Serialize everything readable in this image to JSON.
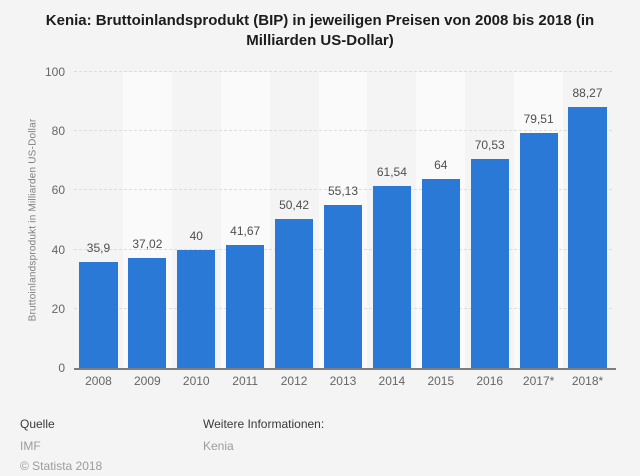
{
  "title": "Kenia: Bruttoinlandsprodukt (BIP) in jeweiligen Preisen von 2008 bis 2018 (in Milliarden US-Dollar)",
  "chart_data": {
    "type": "bar",
    "title": "Kenia: Bruttoinlandsprodukt (BIP) in jeweiligen Preisen von 2008 bis 2018 (in Milliarden US-Dollar)",
    "xlabel": "",
    "ylabel": "Bruttoinlandsprodukt in Milliarden US-Dollar",
    "categories": [
      "2008",
      "2009",
      "2010",
      "2011",
      "2012",
      "2013",
      "2014",
      "2015",
      "2016",
      "2017*",
      "2018*"
    ],
    "values": [
      35.9,
      37.02,
      40,
      41.67,
      50.42,
      55.13,
      61.54,
      64,
      70.53,
      79.51,
      88.27
    ],
    "value_labels": [
      "35,9",
      "37,02",
      "40",
      "41,67",
      "50,42",
      "55,13",
      "61,54",
      "64",
      "70,53",
      "79,51",
      "88,27"
    ],
    "ylim": [
      0,
      100
    ],
    "yticks": [
      0,
      20,
      40,
      60,
      80,
      100
    ],
    "grid": true,
    "legend": false,
    "colors": {
      "bar": "#2a79d7",
      "background": "#f4f4f5",
      "stripe": "#fafafa",
      "gridline": "#dcdcdc",
      "axis_line": "#7d7d7d"
    }
  },
  "footer": {
    "source_label": "Quelle",
    "source": "IMF",
    "copyright": "© Statista 2018",
    "info_label": "Weitere Informationen:",
    "info_value": "Kenia"
  }
}
